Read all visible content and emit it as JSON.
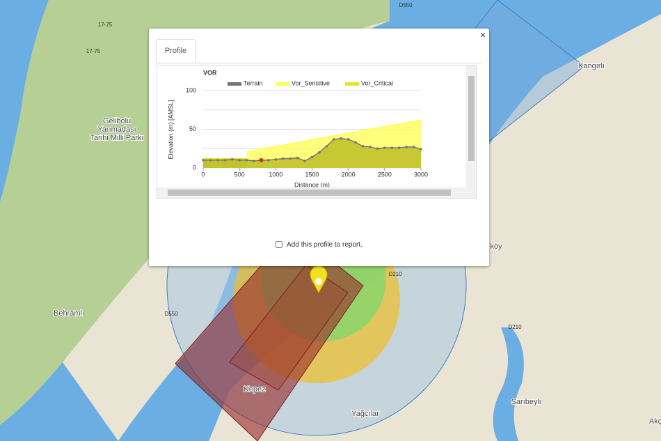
{
  "map": {
    "places": [
      {
        "lines": [
          "Gelibolu",
          "Yarımadası",
          "Tarihi Milli Parkı"
        ]
      },
      {
        "lines": [
          "Behramlı"
        ]
      },
      {
        "lines": [
          "Kangırlı"
        ]
      },
      {
        "lines": [
          "Kepez"
        ]
      },
      {
        "lines": [
          "Yağcılar"
        ]
      },
      {
        "lines": [
          "Sarıbeyli"
        ]
      },
      {
        "lines": [
          "Akç"
        ]
      },
      {
        "lines": [
          "köy"
        ]
      }
    ],
    "roads": [
      "17-75",
      "17-75",
      "D550",
      "D550",
      "D210",
      "D210"
    ]
  },
  "popup": {
    "close": "×",
    "tab": "Profile",
    "checkbox_label": "Add this profile to report.",
    "chart": {
      "type": "area",
      "title": "VOR",
      "y_label": "Elevation (m) [AMSL]",
      "x_label": "Distance (m)",
      "xlim": [
        0,
        3000
      ],
      "ylim": [
        0,
        100
      ],
      "xticks": [
        0,
        500,
        1000,
        1500,
        2000,
        2500,
        3000
      ],
      "yticks": [
        0,
        50,
        100
      ],
      "minor_yticks": [
        25,
        75
      ],
      "highlight_x": 800,
      "series": [
        {
          "name": "Terrain",
          "color": "#777777",
          "x": [
            0,
            100,
            200,
            300,
            400,
            500,
            600,
            700,
            800,
            900,
            1000,
            1100,
            1200,
            1300,
            1400,
            1500,
            1600,
            1700,
            1800,
            1900,
            2000,
            2100,
            2200,
            2300,
            2400,
            2500,
            2600,
            2700,
            2800,
            2900,
            3000
          ],
          "values": [
            10,
            10,
            10,
            10,
            11,
            10,
            10,
            9,
            10,
            10,
            11,
            12,
            12,
            13,
            9,
            14,
            20,
            28,
            37,
            38,
            37,
            33,
            28,
            27,
            25,
            26,
            26,
            26,
            27,
            27,
            24
          ]
        },
        {
          "name": "Vor_Sensitive",
          "color": "#ffff55",
          "x": [
            600,
            3000
          ],
          "values": [
            21,
            62
          ]
        },
        {
          "name": "Vor_Critical",
          "color": "#e4e430",
          "x": [
            0,
            600
          ],
          "values": [
            12,
            12
          ]
        }
      ]
    }
  }
}
